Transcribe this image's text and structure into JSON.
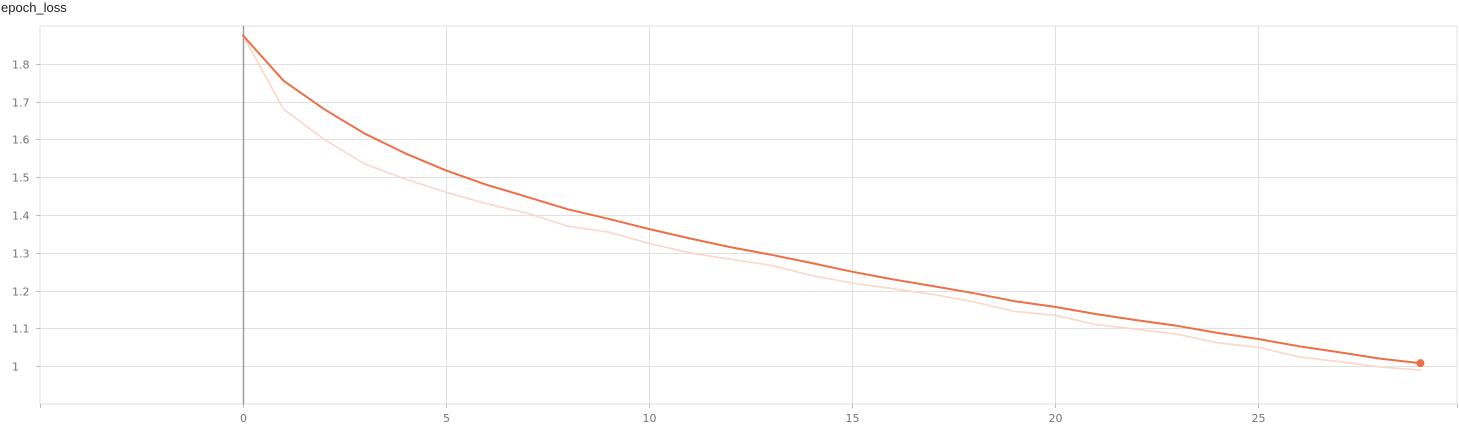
{
  "chart_data": {
    "type": "line",
    "title": "epoch_loss",
    "xlabel": "",
    "ylabel": "",
    "xlim": [
      -5,
      29.9
    ],
    "ylim": [
      0.9,
      1.9
    ],
    "x_ticks": [
      0,
      5,
      10,
      15,
      20,
      25
    ],
    "y_ticks": [
      1,
      1.1,
      1.2,
      1.3,
      1.4,
      1.5,
      1.6,
      1.7,
      1.8
    ],
    "x_tick_labels": [
      "0",
      "5",
      "10",
      "15",
      "20",
      "25"
    ],
    "y_tick_labels": [
      "1",
      "1.1",
      "1.2",
      "1.3",
      "1.4",
      "1.5",
      "1.6",
      "1.7",
      "1.8"
    ],
    "grid": true,
    "x": [
      0,
      1,
      2,
      3,
      4,
      5,
      6,
      7,
      8,
      9,
      10,
      11,
      12,
      13,
      14,
      15,
      16,
      17,
      18,
      19,
      20,
      21,
      22,
      23,
      24,
      25,
      26,
      27,
      28,
      29
    ],
    "series": [
      {
        "role": "raw",
        "color": "#fbd6c9",
        "values": [
          1.875,
          1.68,
          1.6,
          1.535,
          1.495,
          1.46,
          1.43,
          1.405,
          1.37,
          1.355,
          1.325,
          1.3,
          1.283,
          1.267,
          1.24,
          1.22,
          1.205,
          1.19,
          1.17,
          1.145,
          1.135,
          1.11,
          1.098,
          1.085,
          1.062,
          1.05,
          1.025,
          1.012,
          0.998,
          0.99
        ]
      },
      {
        "role": "smoothed",
        "color": "#ee6e45",
        "values": [
          1.875,
          1.755,
          1.68,
          1.615,
          1.563,
          1.518,
          1.48,
          1.448,
          1.415,
          1.39,
          1.363,
          1.338,
          1.315,
          1.295,
          1.273,
          1.25,
          1.23,
          1.212,
          1.193,
          1.172,
          1.157,
          1.138,
          1.122,
          1.107,
          1.088,
          1.072,
          1.053,
          1.037,
          1.02,
          1.008
        ]
      }
    ]
  }
}
